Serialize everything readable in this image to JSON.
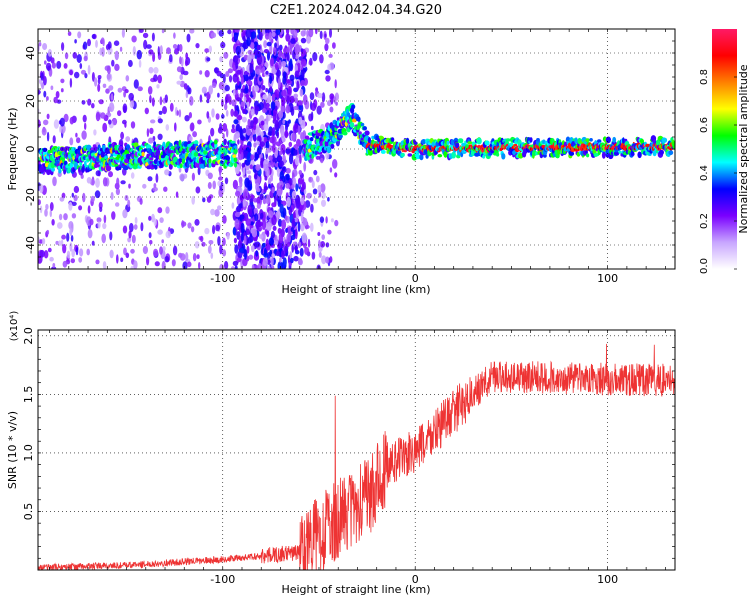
{
  "title": "C2E1.2024.042.04.34.G20",
  "chart_data": [
    {
      "type": "heatmap",
      "xlabel": "Height of straight line (km)",
      "ylabel": "Frequency (Hz)",
      "xlim": [
        -196,
        135
      ],
      "ylim": [
        -50,
        50
      ],
      "xticks": [
        -100,
        0,
        100
      ],
      "yticks": [
        -40,
        -20,
        0,
        20,
        40
      ],
      "colorbar": {
        "label": "Normalized spectral amplitude",
        "ticks": [
          "0.0",
          "0.2",
          "0.4",
          "0.6",
          "0.8"
        ],
        "range": [
          0,
          1
        ],
        "colors": [
          "#ffffff",
          "#c8a6ff",
          "#7a00ff",
          "#0000ff",
          "#00ffff",
          "#00ff00",
          "#ffff00",
          "#ff8000",
          "#ff0000",
          "#ff1a66"
        ]
      },
      "ridge": [
        {
          "x": -196,
          "f": -5
        },
        {
          "x": -150,
          "f": -3
        },
        {
          "x": -100,
          "f": -2
        },
        {
          "x": -60,
          "f": 0
        },
        {
          "x": -45,
          "f": 4
        },
        {
          "x": -33,
          "f": 14
        },
        {
          "x": -25,
          "f": 2
        },
        {
          "x": 0,
          "f": 0
        },
        {
          "x": 135,
          "f": 1
        }
      ],
      "broadband_region": {
        "x_from": -94,
        "x_to": -57
      }
    },
    {
      "type": "line",
      "xlabel": "Height of straight line (km)",
      "ylabel": "SNR (10 * v/v)",
      "y_multiplier": "(x10⁴)",
      "xlim": [
        -196,
        135
      ],
      "ylim": [
        0,
        2.05
      ],
      "xticks": [
        -100,
        0,
        100
      ],
      "yticks": [
        "0.5",
        "1.0",
        "1.5",
        "2.0"
      ],
      "color": "#ee3333",
      "trend": [
        {
          "x": -196,
          "y": 0.02
        },
        {
          "x": -150,
          "y": 0.04
        },
        {
          "x": -100,
          "y": 0.09
        },
        {
          "x": -60,
          "y": 0.15
        },
        {
          "x": -40,
          "y": 0.45
        },
        {
          "x": -25,
          "y": 0.6
        },
        {
          "x": -15,
          "y": 0.9
        },
        {
          "x": 0,
          "y": 1.0
        },
        {
          "x": 20,
          "y": 1.35
        },
        {
          "x": 40,
          "y": 1.65
        },
        {
          "x": 135,
          "y": 1.62
        }
      ]
    }
  ]
}
